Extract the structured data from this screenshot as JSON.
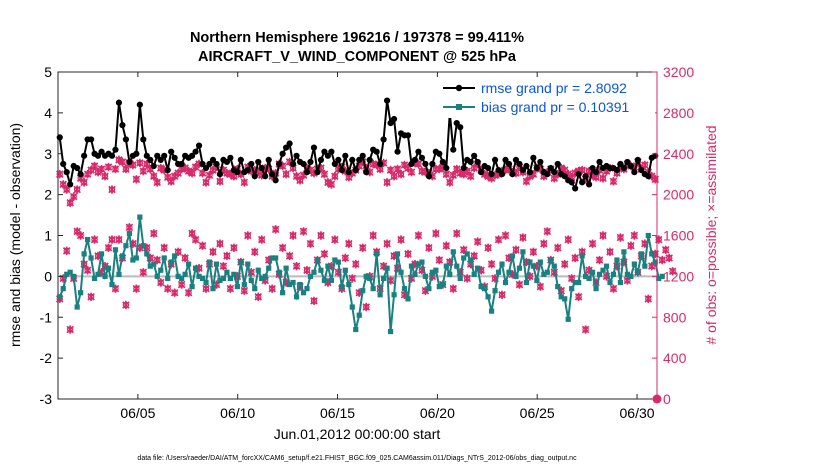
{
  "chart_data": {
    "type": "line",
    "title": "Northern Hemisphere 196216 / 197378 = 99.411%",
    "subtitle": "AIRCRAFT_V_WIND_COMPONENT @ 525 hPa",
    "xlabel": "Jun.01,2012 00:00:00 start",
    "ylabel": "rmse and bias (model - observation)",
    "y2label": "# of obs: o=possible; ×=assimilated",
    "footnote": "data file: /Users/raeder/DAI/ATM_forcXX/CAM6_setup/f.e21.FHIST_BGC.f09_025.CAM6assim.011/Diags_NTrS_2012-06/obs_diag_output.nc",
    "x_ticks": [
      "06/05",
      "06/10",
      "06/15",
      "06/20",
      "06/25",
      "06/30"
    ],
    "x_tick_days": [
      5,
      10,
      15,
      20,
      25,
      30
    ],
    "xlim": [
      1,
      31
    ],
    "ylim": [
      -3,
      5
    ],
    "y_ticks": [
      "-3",
      "-2",
      "-1",
      "0",
      "1",
      "2",
      "3",
      "4",
      "5"
    ],
    "y2lim": [
      0,
      3200
    ],
    "y2_ticks": [
      "0",
      "400",
      "800",
      "1200",
      "1600",
      "2000",
      "2400",
      "2800",
      "3200"
    ],
    "legend": [
      "rmse grand pr = 2.8092",
      "bias grand pr = 0.10391"
    ],
    "colors": {
      "rmse": "#000000",
      "bias": "#1a8080",
      "obs": "#d62b6b",
      "zero": "#bbbbbb",
      "legend_text": "#0b55d8"
    },
    "rmse": [
      3.4,
      2.75,
      2.55,
      2.25,
      2.7,
      2.65,
      2.5,
      2.95,
      3.35,
      3.35,
      3.0,
      2.95,
      3.05,
      2.95,
      3.0,
      2.95,
      3.1,
      4.25,
      3.7,
      3.35,
      2.8,
      2.95,
      3.0,
      4.2,
      3.35,
      2.95,
      2.85,
      2.7,
      2.95,
      2.85,
      2.95,
      2.6,
      3.05,
      2.9,
      2.75,
      2.75,
      2.95,
      2.9,
      2.95,
      3.05,
      3.2,
      2.75,
      2.65,
      2.75,
      2.85,
      2.75,
      2.5,
      2.85,
      2.8,
      2.9,
      2.6,
      2.55,
      2.85,
      2.55,
      2.6,
      2.75,
      2.45,
      2.8,
      2.65,
      2.45,
      2.85,
      2.5,
      2.35,
      2.75,
      3.0,
      3.15,
      3.25,
      2.75,
      2.95,
      2.8,
      2.75,
      2.55,
      2.8,
      3.15,
      2.55,
      2.85,
      3.05,
      2.95,
      3.05,
      2.75,
      2.85,
      2.6,
      2.95,
      2.55,
      2.85,
      2.6,
      2.85,
      2.95,
      2.55,
      2.85,
      3.1,
      3.05,
      2.75,
      3.35,
      4.3,
      3.75,
      3.85,
      3.05,
      3.5,
      3.45,
      3.45,
      2.75,
      2.85,
      3.05,
      2.9,
      2.75,
      2.45,
      2.75,
      3.05,
      3.0,
      2.8,
      2.65,
      4.0,
      3.1,
      3.75,
      3.65,
      2.65,
      2.85,
      2.8,
      2.95,
      2.8,
      2.55,
      2.7,
      2.65,
      2.5,
      2.85,
      2.6,
      2.5,
      2.85,
      2.75,
      2.5,
      2.85,
      2.75,
      2.6,
      2.7,
      2.55,
      2.9,
      2.65,
      2.8,
      2.55,
      2.5,
      2.65,
      2.55,
      2.75,
      2.5,
      2.45,
      2.35,
      2.3,
      2.15,
      2.5,
      2.3,
      2.45,
      2.25,
      2.65,
      2.55,
      2.8,
      2.65,
      2.7,
      2.65,
      2.65,
      2.6,
      2.75,
      2.65,
      2.8,
      2.7,
      2.55,
      2.85,
      2.6,
      2.5,
      2.45,
      2.9,
      2.95
    ],
    "bias": [
      -0.5,
      -0.3,
      0.05,
      0.1,
      0.0,
      -0.75,
      -0.4,
      0.55,
      0.9,
      0.45,
      -0.05,
      0.05,
      0.55,
      0.0,
      0.2,
      -0.2,
      0.65,
      0.05,
      0.5,
      0.75,
      1.05,
      0.4,
      0.45,
      1.45,
      0.75,
      0.55,
      0.25,
      0.3,
      0.0,
      0.15,
      0.45,
      -0.05,
      0.35,
      0.5,
      0.0,
      -0.05,
      0.05,
      0.3,
      -0.25,
      0.2,
      0.0,
      -0.05,
      -0.15,
      0.35,
      -0.3,
      0.3,
      -0.1,
      -0.05,
      0.1,
      -0.05,
      0.05,
      -0.25,
      0.35,
      -0.2,
      0.3,
      -0.1,
      -0.3,
      0.15,
      -0.05,
      0.0,
      0.2,
      0.45,
      0.45,
      0.1,
      -0.4,
      0.2,
      -0.2,
      -0.15,
      -0.5,
      -0.2,
      -0.4,
      -0.3,
      0.0,
      0.1,
      0.4,
      0.15,
      -0.1,
      0.25,
      -0.1,
      0.4,
      0.35,
      -0.25,
      0.15,
      -0.2,
      -0.75,
      -1.3,
      -0.95,
      -0.35,
      0.0,
      -0.05,
      -0.3,
      0.55,
      -0.45,
      -0.05,
      0.2,
      -1.35,
      -0.45,
      0.55,
      0.1,
      -0.3,
      -0.55,
      0.25,
      0.05,
      0.3,
      0.35,
      0.0,
      -0.3,
      0.1,
      0.15,
      -0.25,
      -0.2,
      0.25,
      0.05,
      0.6,
      0.25,
      -0.05,
      0.45,
      0.55,
      0.4,
      0.05,
      0.2,
      -0.25,
      -0.3,
      -0.5,
      -0.85,
      -0.35,
      0.1,
      0.3,
      -0.15,
      0.1,
      0.5,
      0.0,
      0.2,
      0.6,
      -0.15,
      0.35,
      0.25,
      -0.1,
      0.35,
      0.05,
      0.1,
      0.4,
      0.25,
      -0.25,
      -0.5,
      -0.55,
      -1.05,
      -0.3,
      -0.15,
      -0.15,
      0.5,
      0.0,
      -0.05,
      0.1,
      -0.3,
      0.05,
      0.15,
      0.25,
      -0.15,
      0.05,
      0.4,
      -0.15,
      0.6,
      0.05,
      0.0,
      0.3,
      0.1,
      0.55,
      0.25,
      1.0,
      0.55,
      0.35,
      -0.05,
      0.0
    ],
    "obs_high": [
      2200,
      2100,
      2050,
      1920,
      1980,
      2050,
      2160,
      2120,
      2200,
      2240,
      2280,
      2220,
      2250,
      2180,
      2270,
      2050,
      2250,
      2340,
      2320,
      2250,
      2310,
      2290,
      2150,
      2310,
      2230,
      2300,
      2250,
      2180,
      2120,
      2260,
      2240,
      2170,
      2130,
      2180,
      2210,
      2250,
      2260,
      2230,
      2210,
      2270,
      2300,
      2210,
      2120,
      2190,
      2240,
      2270,
      2130,
      2240,
      2210,
      2200,
      2180,
      2250,
      2200,
      2120,
      2270,
      2230,
      2240,
      2220,
      2190,
      2260,
      2250,
      2180,
      2210,
      2300,
      2280,
      2200,
      2320,
      2260,
      2180,
      2140,
      2190,
      2260,
      2240,
      2210,
      2250,
      2260,
      2200,
      2120,
      2100,
      2180,
      2250,
      2270,
      2230,
      2170,
      2210,
      2240,
      2280,
      2320,
      2260,
      2220,
      2300,
      2290,
      2250,
      2310,
      2120,
      2240,
      2180,
      2250,
      2200,
      2290,
      2260,
      2220,
      2310,
      2300,
      2230,
      2220,
      2210,
      2180,
      2250,
      2250,
      2270,
      2200,
      2120,
      2190,
      2250,
      2210,
      2200,
      2230,
      2180,
      2260,
      2300,
      2240,
      2200,
      2180,
      2160,
      2190,
      2200,
      2230,
      2240,
      2250,
      2220,
      2210,
      2270,
      2220,
      2130,
      2180,
      2200,
      2260,
      2250,
      2180,
      2220,
      2250,
      2160,
      2200,
      2260,
      2240,
      2200,
      2170,
      2210,
      2230,
      2240,
      2150,
      2230,
      2190,
      2170,
      2240,
      2160,
      2230,
      2260,
      2130,
      2210,
      2270,
      2250,
      2300,
      2280,
      2270,
      2320,
      2250,
      2290,
      2220,
      2180,
      2150
    ],
    "obs_low": [
      980,
      1180,
      1450,
      680,
      1180,
      1640,
      1600,
      1320,
      1260,
      1000,
      1560,
      1400,
      1240,
      1300,
      1480,
      1560,
      1080,
      1560,
      1380,
      920,
      1680,
      1520,
      1080,
      1480,
      1240,
      1480,
      1380,
      1620,
      1360,
      1140,
      1480,
      1080,
      1320,
      1040,
      1440,
      1120,
      1380,
      1040,
      1620,
      1560,
      1280,
      1500,
      1080,
      1320,
      1440,
      1120,
      1520,
      1300,
      1400,
      1080,
      1480,
      1200,
      1340,
      1060,
      1600,
      1240,
      1440,
      1000,
      1560,
      1160,
      1360,
      1080,
      1660,
      1220,
      1480,
      1140,
      1400,
      1600,
      1300,
      1100,
      1640,
      1260,
      1520,
      960,
      1360,
      1600,
      1420,
      1140,
      1300,
      1560,
      1240,
      1080,
      1380,
      1520,
      1180,
      1320,
      1040,
      1480,
      900,
      1200,
      1600,
      1440,
      1080,
      1300,
      1520,
      1160,
      1400,
      1280,
      1560,
      1020,
      1420,
      1180,
      1320,
      1600,
      1260,
      1060,
      1480,
      1200,
      1620,
      1360,
      1120,
      1500,
      1340,
      1080,
      1620,
      1240,
      1460,
      1180,
      1320,
      1400,
      1540,
      1260,
      1100,
      1480,
      1320,
      1180,
      1560,
      1020,
      1600,
      1380,
      1220,
      1460,
      1120,
      1580,
      1340,
      1200,
      1440,
      1300,
      1100,
      1520,
      1640,
      1360,
      1240,
      1480,
      1060,
      1320,
      1560,
      1180,
      1380,
      1000,
      1440,
      680,
      1260,
      1520,
      1140,
      1360,
      1600,
      1200,
      1440,
      1080,
      1300,
      1580,
      1340,
      1160,
      1500,
      1600,
      1240,
      1400,
      1520,
      980,
      1300,
      1420,
      1560,
      1360,
      1460,
      1380,
      1250
    ]
  }
}
